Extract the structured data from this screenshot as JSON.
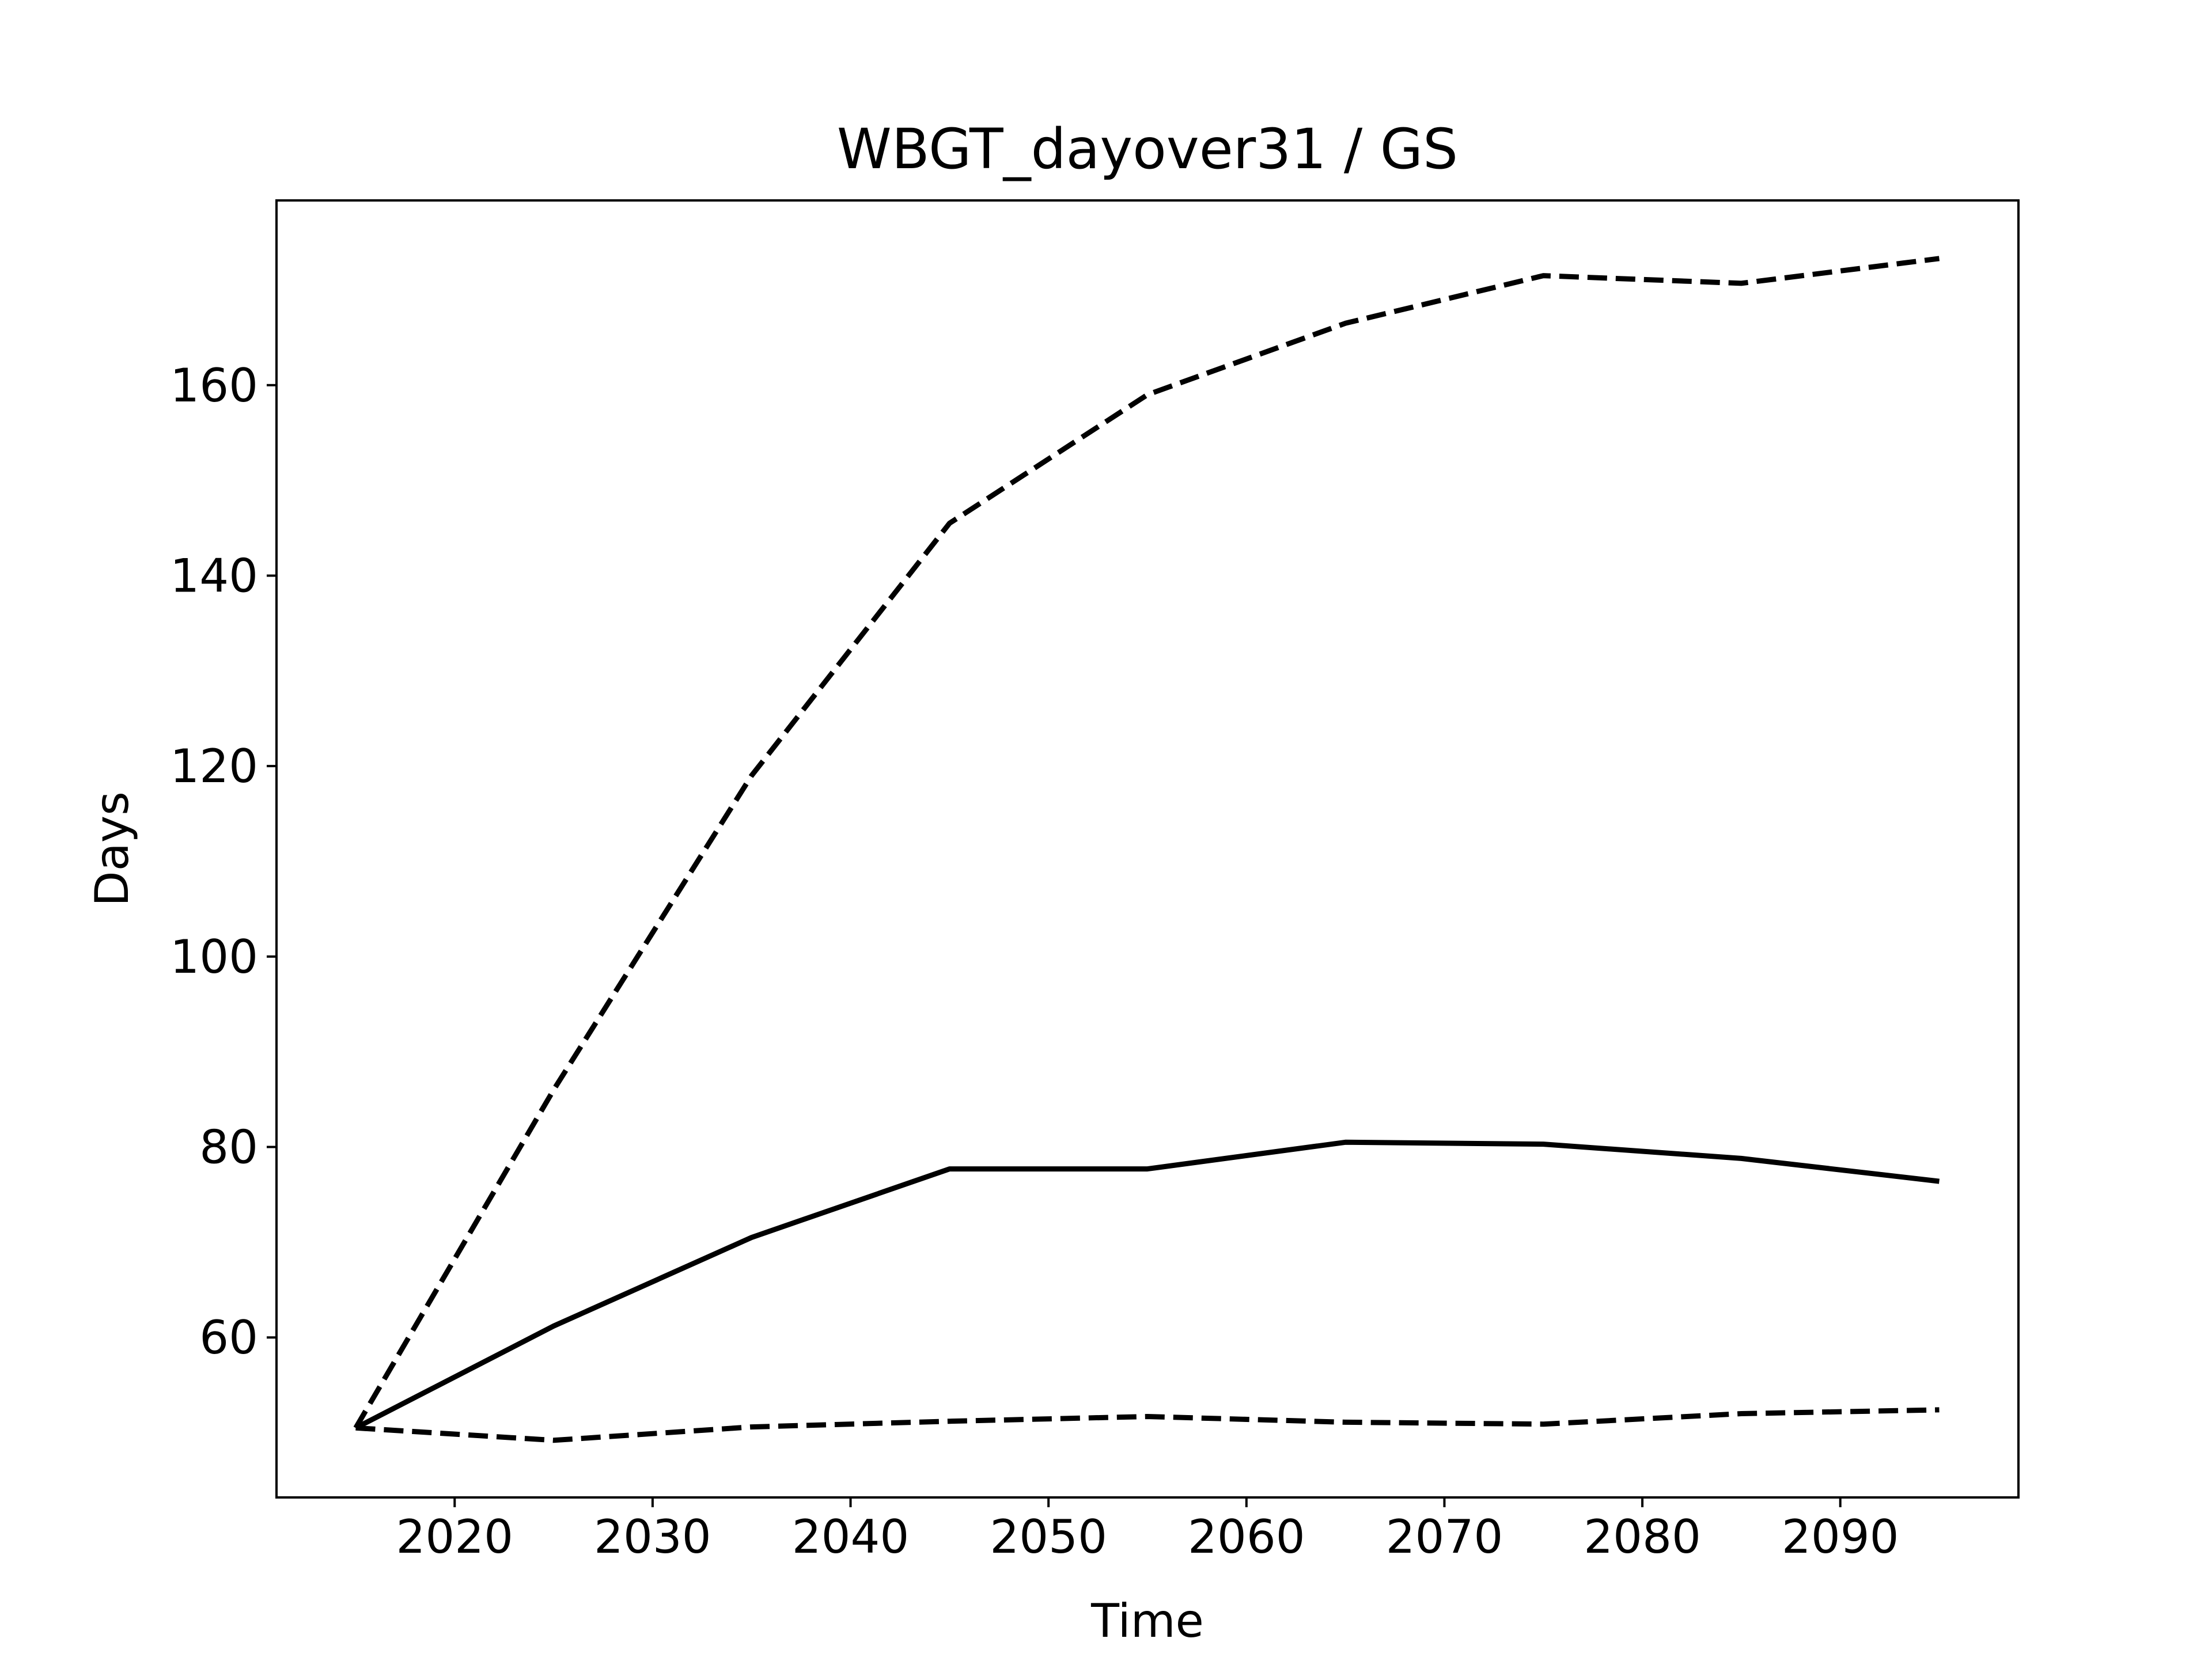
{
  "chart_data": {
    "type": "line",
    "title": "WBGT_dayover31 / GS",
    "xlabel": "Time",
    "ylabel": "Days",
    "xlim": [
      2011,
      2099
    ],
    "ylim": [
      43.2,
      179.4
    ],
    "xticks": [
      2020,
      2030,
      2040,
      2050,
      2060,
      2070,
      2080,
      2090
    ],
    "yticks": [
      60,
      80,
      100,
      120,
      140,
      160
    ],
    "grid": false,
    "x": [
      2015,
      2025,
      2035,
      2045,
      2055,
      2065,
      2075,
      2085,
      2095
    ],
    "series": [
      {
        "style": "dashed",
        "color": "#000000",
        "values": [
          50.5,
          86.0,
          119.0,
          145.5,
          159.0,
          166.5,
          171.5,
          170.7,
          173.3
        ]
      },
      {
        "style": "solid",
        "color": "#000000",
        "values": [
          50.5,
          61.2,
          70.5,
          77.7,
          77.7,
          80.5,
          80.3,
          78.8,
          76.4
        ]
      },
      {
        "style": "dashed",
        "color": "#000000",
        "values": [
          50.5,
          49.2,
          50.6,
          51.2,
          51.7,
          51.1,
          50.9,
          52.0,
          52.4
        ]
      }
    ]
  }
}
